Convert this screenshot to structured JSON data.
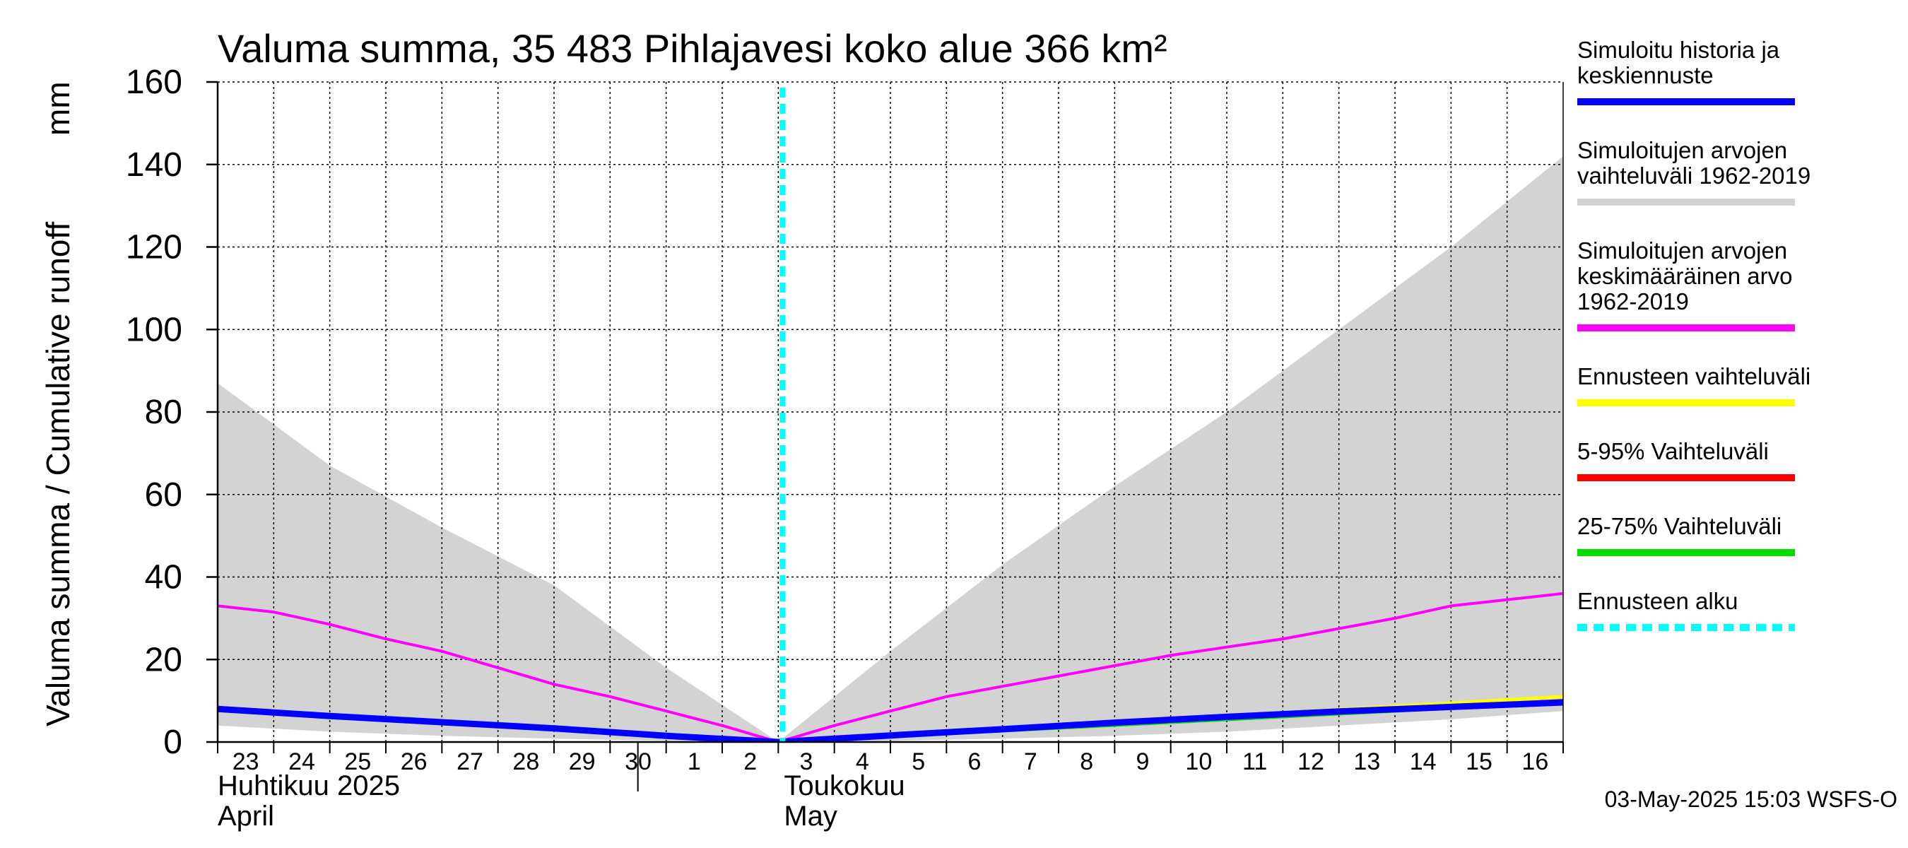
{
  "chart_data": {
    "type": "area",
    "title": "Valuma summa, 35 483 Pihlajavesi koko alue 366 km²",
    "ylabel": "Valuma summa / Cumulative runoff",
    "yunit": "mm",
    "ylim": [
      0,
      160
    ],
    "yticks": [
      0,
      20,
      40,
      60,
      80,
      100,
      120,
      140,
      160
    ],
    "xlim": [
      "2025-04-23",
      "2025-05-17"
    ],
    "x_day_labels": [
      "23",
      "24",
      "25",
      "26",
      "27",
      "28",
      "29",
      "30",
      "1",
      "2",
      "3",
      "4",
      "5",
      "6",
      "7",
      "8",
      "9",
      "10",
      "11",
      "12",
      "13",
      "14",
      "15",
      "16"
    ],
    "months": [
      {
        "fi": "Huhtikuu  2025",
        "en": "April"
      },
      {
        "fi": "Toukokuu",
        "en": "May"
      }
    ],
    "grid": true,
    "forecast_start": "2025-05-03",
    "series": [
      {
        "name": "Simuloitujen arvojen vaihteluväli 1962-2019",
        "kind": "band",
        "color": "#d3d3d3",
        "x": [
          "2025-04-23",
          "2025-04-25",
          "2025-04-27",
          "2025-04-29",
          "2025-05-01",
          "2025-05-03",
          "2025-05-05",
          "2025-05-07",
          "2025-05-09",
          "2025-05-11",
          "2025-05-13",
          "2025-05-15",
          "2025-05-17"
        ],
        "upper": [
          87,
          67,
          52,
          38,
          18,
          0,
          22,
          43,
          62,
          80,
          100,
          120,
          142
        ],
        "lower": [
          4,
          2.5,
          1.5,
          0.8,
          0.3,
          0,
          0.3,
          0.8,
          1.5,
          2.5,
          4,
          5.5,
          7.5
        ]
      },
      {
        "name": "Simuloitujen arvojen keskimääräinen arvo 1962-2019",
        "kind": "line",
        "color": "#ff00ff",
        "x": [
          "2025-04-23",
          "2025-04-24",
          "2025-04-25",
          "2025-04-26",
          "2025-04-27",
          "2025-04-28",
          "2025-04-29",
          "2025-04-30",
          "2025-05-01",
          "2025-05-02",
          "2025-05-03",
          "2025-05-04",
          "2025-05-05",
          "2025-05-06",
          "2025-05-07",
          "2025-05-08",
          "2025-05-09",
          "2025-05-10",
          "2025-05-11",
          "2025-05-12",
          "2025-05-13",
          "2025-05-14",
          "2025-05-15",
          "2025-05-16",
          "2025-05-17"
        ],
        "values": [
          33,
          31.5,
          28.5,
          25,
          22,
          18,
          14,
          11,
          7.5,
          4,
          0,
          4,
          7.5,
          11,
          13.5,
          16,
          18.5,
          21,
          23,
          25,
          27.5,
          30,
          33,
          34.5,
          36
        ]
      },
      {
        "name": "Ennusteen vaihteluväli",
        "kind": "line",
        "color": "#ffff00",
        "x": [
          "2025-05-03",
          "2025-05-10",
          "2025-05-17"
        ],
        "values": [
          0,
          5.5,
          11
        ]
      },
      {
        "name": "5-95% Vaihteluväli",
        "kind": "line",
        "color": "#ff0000",
        "x": [
          "2025-05-03",
          "2025-05-10",
          "2025-05-17"
        ],
        "values": [
          0,
          5,
          10
        ]
      },
      {
        "name": "25-75% Vaihteluväli",
        "kind": "line",
        "color": "#00dd00",
        "x": [
          "2025-05-03",
          "2025-05-10",
          "2025-05-17"
        ],
        "values": [
          0,
          4.8,
          9.6
        ]
      },
      {
        "name": "Simuloitu historia ja keskiennuste",
        "kind": "line",
        "color": "#0000ff",
        "x": [
          "2025-04-23",
          "2025-04-25",
          "2025-04-27",
          "2025-04-29",
          "2025-05-01",
          "2025-05-03",
          "2025-05-05",
          "2025-05-07",
          "2025-05-09",
          "2025-05-11",
          "2025-05-13",
          "2025-05-15",
          "2025-05-17"
        ],
        "values": [
          8,
          6.3,
          4.8,
          3.3,
          1.5,
          0,
          1.6,
          3.1,
          4.7,
          6.1,
          7.4,
          8.5,
          9.6
        ]
      }
    ],
    "legend_position": "right",
    "legend": [
      {
        "lines": [
          "Simuloitu historia ja",
          "keskiennuste"
        ],
        "color": "#0000ff",
        "style": "solid"
      },
      {
        "lines": [
          "Simuloitujen arvojen",
          "vaihteluväli 1962-2019"
        ],
        "color": "#d3d3d3",
        "style": "solid"
      },
      {
        "lines": [
          "Simuloitujen arvojen",
          "keskimääräinen arvo",
          "   1962-2019"
        ],
        "color": "#ff00ff",
        "style": "solid"
      },
      {
        "lines": [
          "Ennusteen vaihteluväli"
        ],
        "color": "#ffff00",
        "style": "solid"
      },
      {
        "lines": [
          "5-95% Vaihteluväli"
        ],
        "color": "#ff0000",
        "style": "solid"
      },
      {
        "lines": [
          "25-75% Vaihteluväli"
        ],
        "color": "#00dd00",
        "style": "solid"
      },
      {
        "lines": [
          "Ennusteen alku"
        ],
        "color": "#00ffff",
        "style": "dashed"
      }
    ]
  },
  "footer": "03-May-2025 15:03 WSFS-O"
}
